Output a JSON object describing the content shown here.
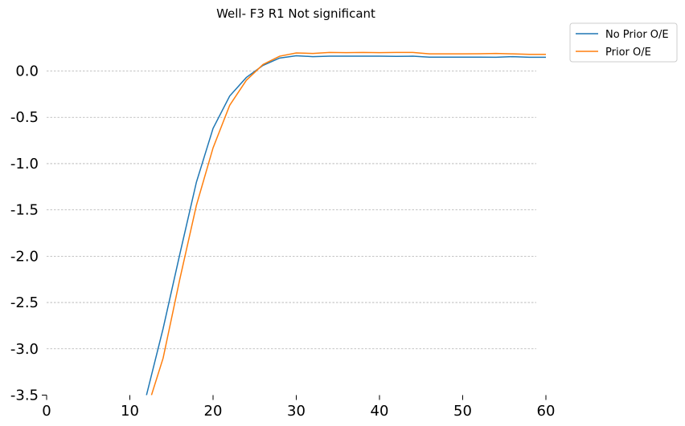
{
  "chart_data": {
    "type": "line",
    "title": "Well- F3    R1     Not significant",
    "xlabel": "",
    "ylabel": "",
    "xlim": [
      0,
      60
    ],
    "ylim": [
      -3.5,
      0.3
    ],
    "x_ticks": [
      "0",
      "10",
      "20",
      "30",
      "40",
      "50",
      "60"
    ],
    "y_ticks": [
      "0.0",
      "-0.5",
      "-1.0",
      "-1.5",
      "-2.0",
      "-2.5",
      "-3.0",
      "-3.5"
    ],
    "y_tick_values": [
      0.0,
      -0.5,
      -1.0,
      -1.5,
      -2.0,
      -2.5,
      -3.0,
      -3.5
    ],
    "grid": "horizontal dashed",
    "legend_position": "outside top-right",
    "series": [
      {
        "name": "No Prior O/E",
        "color": "#1f77b4",
        "x": [
          12,
          14,
          16,
          18,
          20,
          22,
          24,
          26,
          28,
          30,
          32,
          34,
          36,
          38,
          40,
          42,
          44,
          46,
          48,
          50,
          52,
          54,
          56,
          58,
          60
        ],
        "y": [
          -3.5,
          -2.78,
          -1.98,
          -1.2,
          -0.62,
          -0.27,
          -0.07,
          0.06,
          0.14,
          0.165,
          0.155,
          0.16,
          0.16,
          0.16,
          0.16,
          0.158,
          0.16,
          0.15,
          0.15,
          0.15,
          0.15,
          0.148,
          0.155,
          0.148,
          0.148
        ]
      },
      {
        "name": "Prior O/E",
        "color": "#ff7f0e",
        "x": [
          12.6,
          14,
          16,
          18,
          20,
          22,
          24,
          26,
          28,
          30,
          32,
          34,
          36,
          38,
          40,
          42,
          44,
          46,
          48,
          50,
          52,
          54,
          56,
          58,
          60
        ],
        "y": [
          -3.5,
          -3.1,
          -2.25,
          -1.45,
          -0.83,
          -0.37,
          -0.1,
          0.07,
          0.16,
          0.195,
          0.19,
          0.2,
          0.198,
          0.2,
          0.198,
          0.2,
          0.2,
          0.185,
          0.185,
          0.185,
          0.186,
          0.19,
          0.185,
          0.18,
          0.18
        ]
      }
    ]
  }
}
